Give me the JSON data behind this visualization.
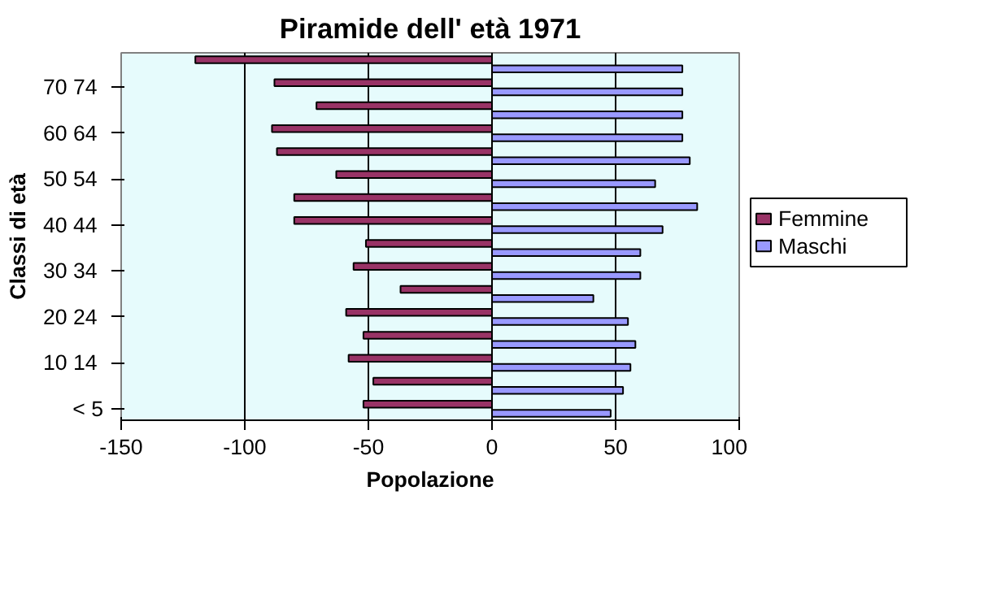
{
  "chart_data": {
    "type": "bar",
    "orientation": "horizontal",
    "title": "Piramide dell' età 1971",
    "xlabel": "Popolazione",
    "ylabel": "Classi di età",
    "categories": [
      null,
      "70  74",
      null,
      "60  64",
      null,
      "50  54",
      null,
      "40  44",
      null,
      "30  34",
      null,
      "20  24",
      null,
      "10  14",
      null,
      "< 5"
    ],
    "series": [
      {
        "name": "Femmine",
        "color": "#993366",
        "values": [
          -120,
          -88,
          -71,
          -89,
          -87,
          -63,
          -80,
          -80,
          -51,
          -56,
          -37,
          -59,
          -52,
          -58,
          -48,
          -52
        ]
      },
      {
        "name": "Maschi",
        "color": "#9999ff",
        "values": [
          77,
          77,
          77,
          77,
          80,
          66,
          83,
          69,
          60,
          60,
          41,
          55,
          58,
          56,
          53,
          48
        ]
      }
    ],
    "xlim": [
      -150,
      100
    ],
    "xticks": [
      -150,
      -100,
      -50,
      0,
      50,
      100
    ],
    "grid": "x",
    "legend": "right"
  }
}
